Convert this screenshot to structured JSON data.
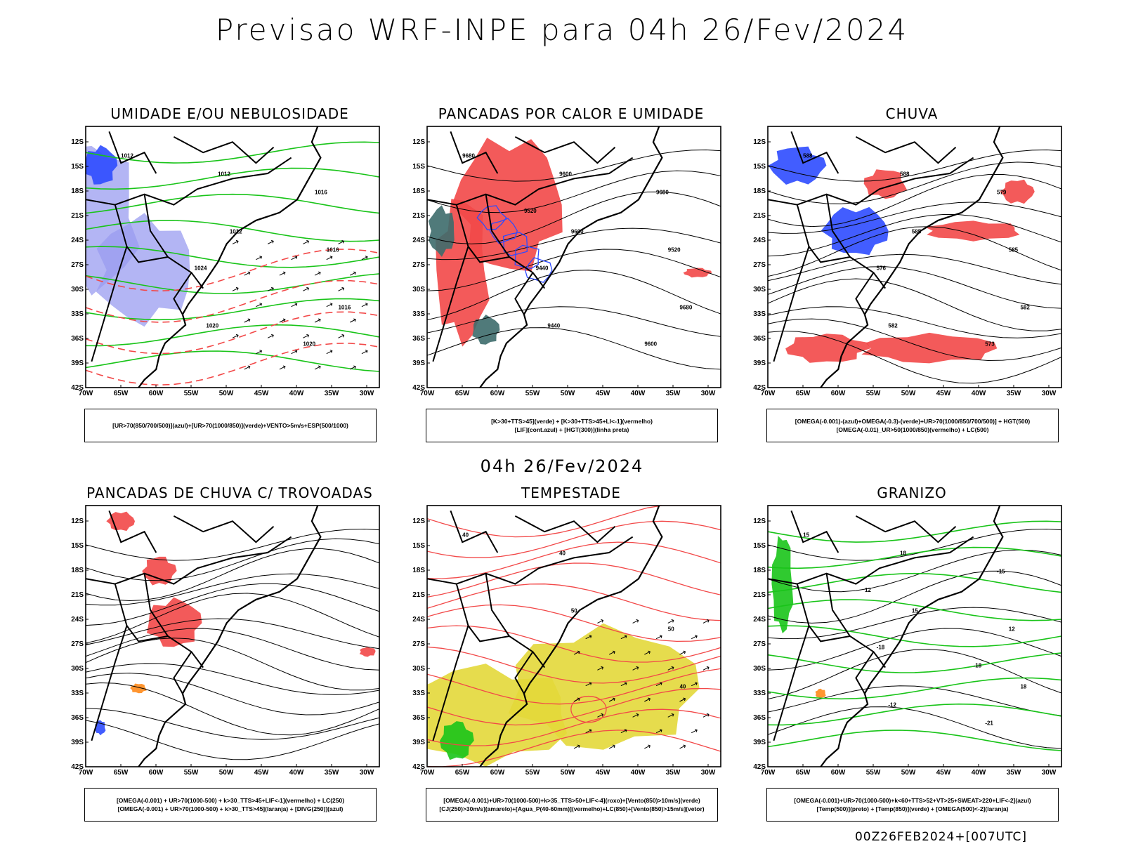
{
  "title": "Previsao WRF-INPE  para 04h 26/Fev/2024",
  "subtitle": "04h 26/Fev/2024",
  "footer": "00Z26FEB2024+[007UTC]",
  "axes": {
    "lat_labels": [
      "12S",
      "15S",
      "18S",
      "21S",
      "24S",
      "27S",
      "30S",
      "33S",
      "36S",
      "39S",
      "42S"
    ],
    "lon_labels": [
      "70W",
      "65W",
      "60W",
      "55W",
      "50W",
      "45W",
      "40W",
      "35W",
      "30W"
    ]
  },
  "colors": {
    "blue": "#2e4bff",
    "lavender": "#9a9cf0",
    "green": "#19c419",
    "red": "#f24848",
    "teal": "#3d6b6b",
    "yellow": "#e3d83a",
    "orange": "#ff8a1a"
  },
  "panels": [
    {
      "title": "UMIDADE E/OU NEBULOSIDADE",
      "legend": [
        "[UR>70(850/700/500)](azul)+[UR>70(1000/850)](verde)+VENTO>5m/s+ESP(500/1000)"
      ],
      "contour_labels": [
        "1012",
        "1012",
        "1016",
        "1012",
        "1016",
        "1020",
        "1016",
        "1024",
        "1020"
      ]
    },
    {
      "title": "PANCADAS POR CALOR E UMIDADE",
      "legend": [
        "[K>30+TTS>45](verde)  +  [K>30+TTS>45+LI<-1](vermelho)",
        "[LIF](cont.azul)  +  [HGT(300)](linha preta)"
      ],
      "contour_labels": [
        "9680",
        "9600",
        "9680",
        "9600",
        "9520",
        "9440",
        "9680",
        "9440",
        "9600",
        "9520"
      ]
    },
    {
      "title": "CHUVA",
      "legend": [
        "[OMEGA(-0.001)-(azul)+OMEGA(-0.3)-(verde)+UR>70(1000/850/700/500)]  +  HGT(500)",
        "[OMEGA(-0.01)_UR>50(1000/850)(vermelho)  +  LC(500)"
      ],
      "contour_labels": [
        "588",
        "585",
        "582",
        "588",
        "585",
        "582",
        "579",
        "576",
        "573"
      ]
    },
    {
      "title": "PANCADAS DE CHUVA C/ TROVOADAS",
      "legend": [
        "[OMEGA(-0.001)  +  UR>70(1000-500)  +  k>30_TTS>45+LIF<-1](vermelho)  +  LC(250)",
        "[OMEGA(-0.001)  +  UR>70(1000-500)  +  k>30_TTS>45](laranja)  +  [DIVG(250)](azul)"
      ],
      "contour_labels": []
    },
    {
      "title": "TEMPESTADE",
      "legend": [
        "[OMEGA(-0.001)+UR>70(1000-500)+k>35_TTS>50+LIF<-4](roxo)+[Vento(850)>10m/s](verde)",
        "[CJ(250)>30m/s](amarelo)+[Agua_P(40-60mm)](vermelho)+LC(850)+[Vento(850)>15m/s](vetor)"
      ],
      "contour_labels": [
        "40",
        "50",
        "40",
        "40",
        "50"
      ]
    },
    {
      "title": "GRANIZO",
      "legend": [
        "[OMEGA(-0.001)+UR>70(1000-500)+k<60+TTS>52+VT>25+SWEAT>220+LIF<-2](azul)",
        "[Temp(500)](preto)  +  [Temp(850)](verde)  +  [OMEGA(500)<-2](laranja)"
      ],
      "contour_labels": [
        "15",
        "15",
        "18",
        "18",
        "12",
        "-12",
        "-15",
        "-18",
        "-21",
        "12",
        "-18"
      ]
    }
  ]
}
